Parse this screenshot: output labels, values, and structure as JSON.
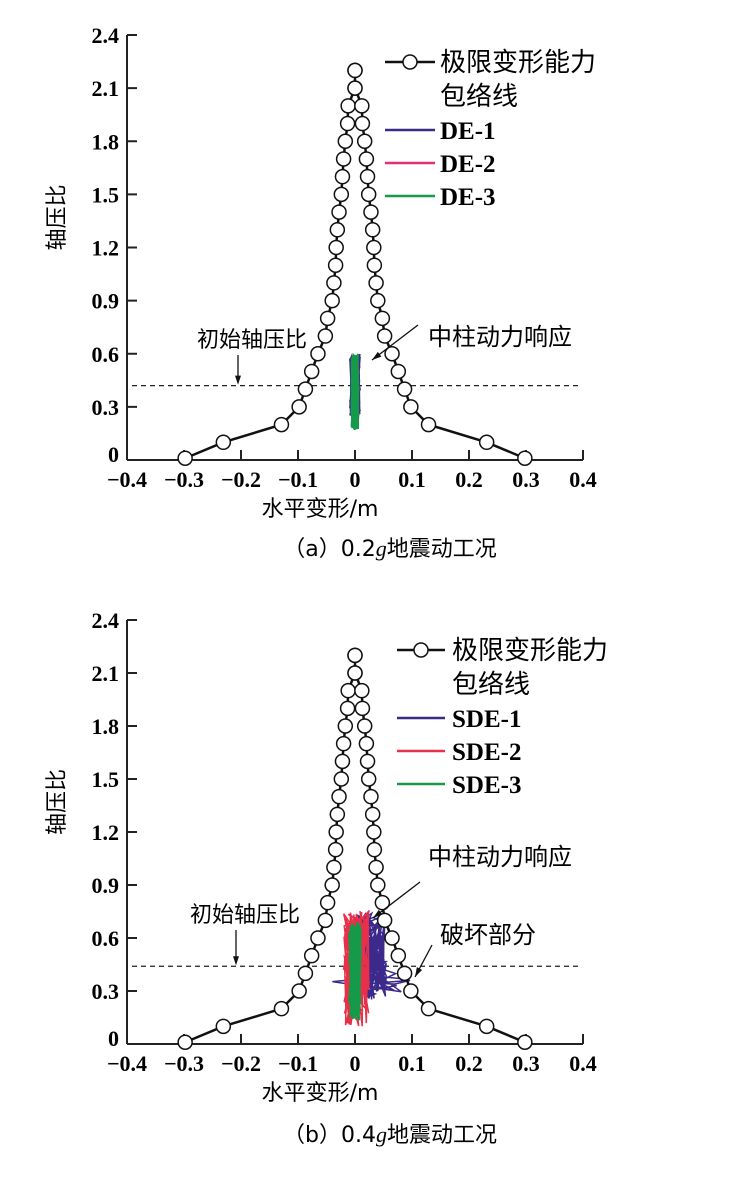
{
  "chart_data": [
    {
      "type": "line",
      "id": "a",
      "caption": {
        "prefix": "（a）0.2",
        "italic": "g",
        "suffix": "地震动工况"
      },
      "xlabel": "水平变形/m",
      "ylabel": "轴压比",
      "xlim": [
        -0.4,
        0.4
      ],
      "ylim": [
        0,
        2.4
      ],
      "xticks": [
        "−0.4",
        "−0.3",
        "−0.2",
        "−0.1",
        "0",
        "0.1",
        "0.2",
        "0.3",
        "0.4"
      ],
      "yticks": [
        "0",
        "0.3",
        "0.6",
        "0.9",
        "1.2",
        "1.5",
        "1.8",
        "2.1",
        "2.4"
      ],
      "envelope_label_1": "极限变形能力",
      "envelope_label_2": "包络线",
      "initial_ratio": 0.42,
      "initial_label": "初始轴压比",
      "response_label": "中柱动力响应",
      "series": [
        {
          "name": "DE-1",
          "color": "#3b2a8c",
          "x_range": [
            -0.015,
            0.015
          ],
          "y_range": [
            0.25,
            0.6
          ]
        },
        {
          "name": "DE-2",
          "color": "#e0307a",
          "x_range": [
            -0.006,
            0.006
          ],
          "y_range": [
            0.22,
            0.6
          ]
        },
        {
          "name": "DE-3",
          "color": "#159a4a",
          "x_range": [
            -0.006,
            0.006
          ],
          "y_range": [
            0.17,
            0.6
          ]
        }
      ]
    },
    {
      "type": "line",
      "id": "b",
      "caption": {
        "prefix": "（b）0.4",
        "italic": "g",
        "suffix": "地震动工况"
      },
      "xlabel": "水平变形/m",
      "ylabel": "轴压比",
      "xlim": [
        -0.4,
        0.4
      ],
      "ylim": [
        0,
        2.4
      ],
      "xticks": [
        "−0.4",
        "−0.3",
        "−0.2",
        "−0.1",
        "0",
        "0.1",
        "0.2",
        "0.3",
        "0.4"
      ],
      "yticks": [
        "0",
        "0.3",
        "0.6",
        "0.9",
        "1.2",
        "1.5",
        "1.8",
        "2.1",
        "2.4"
      ],
      "envelope_label_1": "极限变形能力",
      "envelope_label_2": "包络线",
      "initial_ratio": 0.44,
      "initial_label": "初始轴压比",
      "response_label": "中柱动力响应",
      "failure_label": "破坏部分",
      "series": [
        {
          "name": "SDE-1",
          "color": "#3b2a8c",
          "x_range": [
            -0.05,
            0.1
          ],
          "y_range": [
            0.25,
            0.75
          ]
        },
        {
          "name": "SDE-2",
          "color": "#e8304a",
          "x_range": [
            -0.02,
            0.025
          ],
          "y_range": [
            0.1,
            0.76
          ]
        },
        {
          "name": "SDE-3",
          "color": "#159a4a",
          "x_range": [
            -0.01,
            0.01
          ],
          "y_range": [
            0.14,
            0.7
          ]
        }
      ]
    }
  ],
  "envelope": {
    "x": [
      0,
      0,
      0.012,
      0.013,
      0.017,
      0.02,
      0.022,
      0.024,
      0.028,
      0.031,
      0.033,
      0.034,
      0.037,
      0.04,
      0.048,
      0.052,
      0.065,
      0.076,
      0.087,
      0.098,
      0.129,
      0.231,
      0.298
    ],
    "y": [
      2.2,
      2.1,
      2.0,
      1.9,
      1.8,
      1.7,
      1.6,
      1.5,
      1.4,
      1.3,
      1.2,
      1.1,
      1.0,
      0.9,
      0.8,
      0.7,
      0.6,
      0.5,
      0.4,
      0.3,
      0.2,
      0.1,
      0.01
    ]
  }
}
